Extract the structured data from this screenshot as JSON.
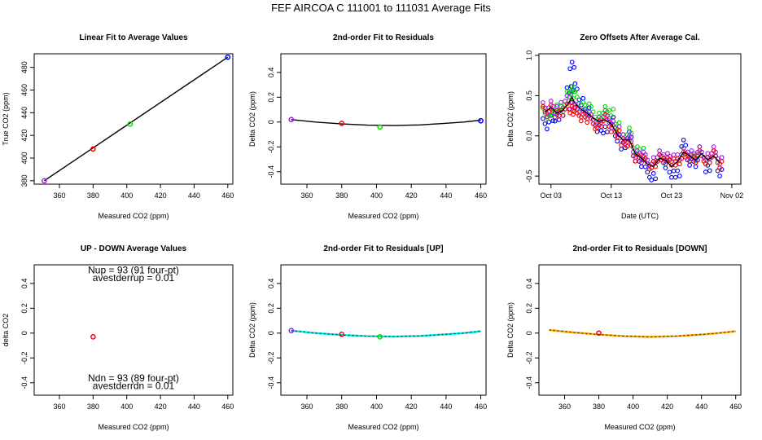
{
  "page": {
    "title": "FEF   AIRCOA C   111001 to 111031   Average Fits"
  },
  "colors": {
    "blue": "#0000ff",
    "red": "#ff0000",
    "green": "#00dd00",
    "purple": "#a020f0",
    "cyan": "#00e5ee",
    "orange": "#ffa500",
    "black": "#000000"
  },
  "chart_data": [
    {
      "id": "linear-fit",
      "type": "scatter",
      "title": "Linear Fit to Average Values",
      "xlabel": "Measured CO2 (ppm)",
      "ylabel": "True CO2 (ppm)",
      "xlim": [
        345,
        463
      ],
      "ylim": [
        377,
        492
      ],
      "xticks": [
        360,
        380,
        400,
        420,
        440,
        460
      ],
      "yticks": [
        380,
        400,
        420,
        440,
        460,
        480
      ],
      "points": [
        {
          "x": 351,
          "y": 380,
          "color": "purple"
        },
        {
          "x": 380,
          "y": 408,
          "color": "red"
        },
        {
          "x": 402,
          "y": 430,
          "color": "green"
        },
        {
          "x": 460,
          "y": 489,
          "color": "blue"
        }
      ],
      "fit_line": {
        "x": [
          351,
          460
        ],
        "y": [
          380,
          489
        ],
        "color": "black"
      }
    },
    {
      "id": "residuals",
      "type": "scatter",
      "title": "2nd-order Fit to Residuals",
      "xlabel": "Measured CO2 (ppm)",
      "ylabel": "Delta CO2 (ppm)",
      "xlim": [
        345,
        463
      ],
      "ylim": [
        -0.5,
        0.55
      ],
      "xticks": [
        360,
        380,
        400,
        420,
        440,
        460
      ],
      "yticks": [
        -0.4,
        -0.2,
        0.0,
        0.2,
        0.4
      ],
      "points": [
        {
          "x": 351,
          "y": 0.02,
          "color": "purple"
        },
        {
          "x": 380,
          "y": -0.01,
          "color": "red"
        },
        {
          "x": 402,
          "y": -0.04,
          "color": "green"
        },
        {
          "x": 460,
          "y": 0.01,
          "color": "blue"
        }
      ],
      "fit_curve": {
        "x": [
          351,
          365,
          380,
          395,
          410,
          425,
          440,
          450,
          460
        ],
        "y": [
          0.02,
          0.0,
          -0.015,
          -0.025,
          -0.028,
          -0.023,
          -0.01,
          0.0,
          0.015
        ],
        "color": "black"
      }
    },
    {
      "id": "zero-offsets",
      "type": "scatter",
      "title": "Zero Offsets After Average Cal.",
      "xlabel": "Date (UTC)",
      "ylabel": "Delta CO2 (ppm)",
      "xlim": [
        0,
        33.5
      ],
      "ylim": [
        -0.6,
        1.02
      ],
      "xticks": [
        2,
        12,
        22,
        32
      ],
      "xtick_labels": [
        "Oct 03",
        "Oct 13",
        "Oct 23",
        "Nov 02"
      ],
      "yticks": [
        -0.5,
        0.0,
        0.5,
        1.0
      ],
      "ytick_labels": [
        "-0.5",
        "0.0",
        "0.5",
        "1.0"
      ],
      "series": [
        {
          "color": "blue",
          "x": [
            1,
            2,
            3,
            4,
            5,
            5.5,
            6,
            7,
            8,
            9,
            10,
            11,
            12,
            13,
            14,
            15,
            16,
            17,
            18,
            19,
            20,
            21,
            22,
            23,
            24,
            25,
            26,
            27,
            28,
            29,
            30
          ],
          "y": [
            0.15,
            0.22,
            0.2,
            0.3,
            0.55,
            0.9,
            0.6,
            0.45,
            0.3,
            0.2,
            0.1,
            0.05,
            0.2,
            -0.05,
            -0.1,
            0.0,
            -0.25,
            -0.35,
            -0.45,
            -0.5,
            -0.3,
            -0.35,
            -0.5,
            -0.45,
            -0.1,
            -0.3,
            -0.35,
            -0.2,
            -0.4,
            -0.25,
            -0.45
          ]
        },
        {
          "color": "green",
          "x": [
            1,
            2,
            3,
            4,
            5,
            5.5,
            6,
            7,
            8,
            9,
            10,
            11,
            12,
            13,
            14,
            15,
            16,
            17,
            18,
            19,
            20,
            21,
            22,
            23,
            24,
            25,
            26,
            27,
            28,
            29,
            30
          ],
          "y": [
            0.28,
            0.3,
            0.32,
            0.35,
            0.5,
            0.6,
            0.5,
            0.4,
            0.35,
            0.3,
            0.25,
            0.3,
            0.3,
            0.1,
            0.0,
            0.05,
            -0.15,
            -0.2,
            -0.3,
            -0.35,
            -0.25,
            -0.3,
            -0.35,
            -0.3,
            -0.2,
            -0.25,
            -0.28,
            -0.2,
            -0.3,
            -0.25,
            -0.3
          ]
        },
        {
          "color": "purple",
          "x": [
            1,
            2,
            3,
            4,
            5,
            5.5,
            6,
            7,
            8,
            9,
            10,
            11,
            12,
            13,
            14,
            15,
            16,
            17,
            18,
            19,
            20,
            21,
            22,
            23,
            24,
            25,
            26,
            27,
            28,
            29,
            30
          ],
          "y": [
            0.35,
            0.4,
            0.3,
            0.4,
            0.45,
            0.4,
            0.35,
            0.3,
            0.25,
            0.2,
            0.2,
            0.25,
            0.15,
            0.05,
            0.0,
            -0.05,
            -0.2,
            -0.25,
            -0.3,
            -0.3,
            -0.25,
            -0.25,
            -0.3,
            -0.25,
            -0.2,
            -0.2,
            -0.25,
            -0.2,
            -0.25,
            -0.2,
            -0.3
          ]
        },
        {
          "color": "red",
          "x": [
            1,
            2,
            3,
            4,
            5,
            5.5,
            6,
            7,
            8,
            9,
            10,
            11,
            12,
            13,
            14,
            15,
            16,
            17,
            18,
            19,
            20,
            21,
            22,
            23,
            24,
            25,
            26,
            27,
            28,
            29,
            30
          ],
          "y": [
            0.3,
            0.35,
            0.25,
            0.3,
            0.35,
            0.35,
            0.3,
            0.25,
            0.2,
            0.15,
            0.15,
            0.2,
            0.1,
            0.0,
            -0.05,
            -0.1,
            -0.25,
            -0.3,
            -0.35,
            -0.35,
            -0.3,
            -0.3,
            -0.35,
            -0.3,
            -0.25,
            -0.25,
            -0.3,
            -0.25,
            -0.3,
            -0.25,
            -0.35
          ]
        }
      ],
      "mean_line": {
        "x": [
          1,
          2,
          3,
          4,
          5,
          5.5,
          6,
          7,
          8,
          9,
          10,
          11,
          12,
          13,
          14,
          15,
          16,
          17,
          18,
          19,
          20,
          21,
          22,
          23,
          24,
          25,
          26,
          27,
          28,
          29,
          30
        ],
        "y": [
          0.3,
          0.35,
          0.28,
          0.32,
          0.42,
          0.48,
          0.4,
          0.33,
          0.28,
          0.22,
          0.18,
          0.2,
          0.15,
          0.02,
          -0.05,
          -0.05,
          -0.22,
          -0.28,
          -0.35,
          -0.38,
          -0.28,
          -0.3,
          -0.38,
          -0.32,
          -0.2,
          -0.25,
          -0.3,
          -0.22,
          -0.3,
          -0.25,
          -0.33
        ],
        "color": "black"
      }
    },
    {
      "id": "up-down",
      "type": "scatter",
      "title": "UP - DOWN Average Values",
      "xlabel": "Measured CO2 (ppm)",
      "ylabel": "delta CO2",
      "xlim": [
        345,
        463
      ],
      "ylim": [
        -0.5,
        0.55
      ],
      "xticks": [
        360,
        380,
        400,
        420,
        440,
        460
      ],
      "yticks": [
        -0.4,
        -0.2,
        0.0,
        0.2,
        0.4
      ],
      "points": [
        {
          "x": 380,
          "y": -0.03,
          "color": "red"
        }
      ],
      "annotations": [
        {
          "text": "Nup = 93 (91 four-pt)",
          "x": 404,
          "y": 0.48
        },
        {
          "text": "avestderrup =  0.01",
          "x": 404,
          "y": 0.42
        },
        {
          "text": "Ndn = 93 (89 four-pt)",
          "x": 404,
          "y": -0.39
        },
        {
          "text": "avestderrdn =  0.01",
          "x": 404,
          "y": -0.45
        }
      ]
    },
    {
      "id": "residuals-up",
      "type": "scatter",
      "title": "2nd-order Fit to Residuals [UP]",
      "xlabel": "Measured CO2 (ppm)",
      "ylabel": "Delta CO2 (ppm)",
      "xlim": [
        345,
        463
      ],
      "ylim": [
        -0.5,
        0.55
      ],
      "xticks": [
        360,
        380,
        400,
        420,
        440,
        460
      ],
      "yticks": [
        -0.4,
        -0.2,
        0.0,
        0.2,
        0.4
      ],
      "points": [
        {
          "x": 351,
          "y": 0.02,
          "color": "purple"
        },
        {
          "x": 380,
          "y": -0.01,
          "color": "red"
        },
        {
          "x": 402,
          "y": -0.03,
          "color": "green"
        }
      ],
      "fit_curve": {
        "x": [
          351,
          365,
          380,
          395,
          410,
          425,
          440,
          450,
          460
        ],
        "y": [
          0.02,
          0.0,
          -0.015,
          -0.025,
          -0.028,
          -0.023,
          -0.01,
          0.0,
          0.015
        ],
        "color": "cyan"
      }
    },
    {
      "id": "residuals-down",
      "type": "scatter",
      "title": "2nd-order Fit to Residuals [DOWN]",
      "xlabel": "Measured CO2 (ppm)",
      "ylabel": "Delta CO2 (ppm)",
      "xlim": [
        345,
        463
      ],
      "ylim": [
        -0.5,
        0.55
      ],
      "xticks": [
        360,
        380,
        400,
        420,
        440,
        460
      ],
      "yticks": [
        -0.4,
        -0.2,
        0.0,
        0.2,
        0.4
      ],
      "points": [
        {
          "x": 380,
          "y": 0.0,
          "color": "red"
        }
      ],
      "fit_curve": {
        "x": [
          351,
          365,
          380,
          395,
          410,
          425,
          440,
          450,
          460
        ],
        "y": [
          0.025,
          0.005,
          -0.012,
          -0.025,
          -0.03,
          -0.025,
          -0.012,
          0.0,
          0.015
        ],
        "color": "orange"
      }
    }
  ]
}
